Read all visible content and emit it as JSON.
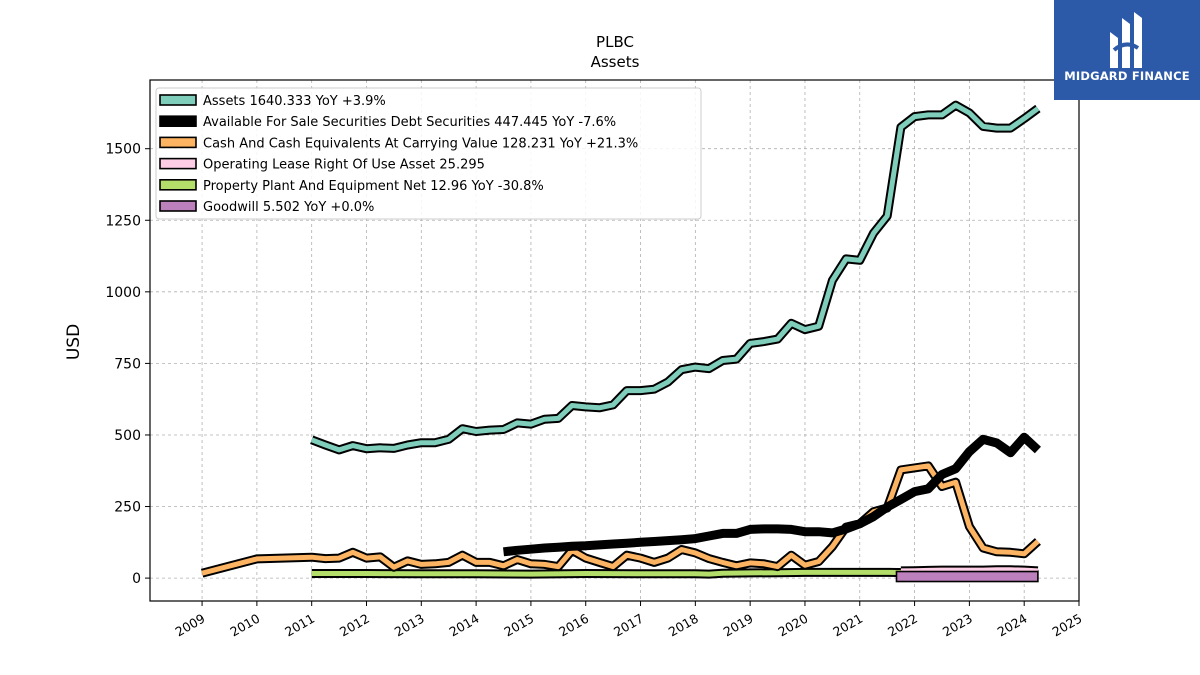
{
  "brand": {
    "name": "MIDGARD FINANCE",
    "logo_icon": "midgard-monogram-icon",
    "color": "#2d5aa8"
  },
  "chart_data": {
    "type": "line",
    "title": "PLBC",
    "subtitle": "Assets",
    "ylabel": "USD",
    "ylim": [
      -80,
      1740
    ],
    "xlim": [
      2008.05,
      2025.0
    ],
    "yticks": [
      0,
      250,
      500,
      750,
      1000,
      1250,
      1500
    ],
    "xticks": [
      2009,
      2010,
      2011,
      2012,
      2013,
      2014,
      2015,
      2016,
      2017,
      2018,
      2019,
      2020,
      2021,
      2022,
      2023,
      2024,
      2025
    ],
    "grid": true,
    "legend_position": "upper-left",
    "series": [
      {
        "name": "Assets",
        "legend": "Assets  1640.333 YoY +3.9%",
        "color": "#7fcdbb",
        "style": "outlined",
        "points": [
          [
            2011.0,
            483
          ],
          [
            2011.25,
            465
          ],
          [
            2011.5,
            448
          ],
          [
            2011.75,
            463
          ],
          [
            2012.0,
            452
          ],
          [
            2012.25,
            455
          ],
          [
            2012.5,
            453
          ],
          [
            2012.75,
            465
          ],
          [
            2013.0,
            473
          ],
          [
            2013.25,
            473
          ],
          [
            2013.5,
            485
          ],
          [
            2013.75,
            522
          ],
          [
            2014.0,
            512
          ],
          [
            2014.25,
            517
          ],
          [
            2014.5,
            519
          ],
          [
            2014.75,
            542
          ],
          [
            2015.0,
            538
          ],
          [
            2015.25,
            555
          ],
          [
            2015.5,
            558
          ],
          [
            2015.75,
            603
          ],
          [
            2016.0,
            598
          ],
          [
            2016.25,
            595
          ],
          [
            2016.5,
            605
          ],
          [
            2016.75,
            655
          ],
          [
            2017.0,
            655
          ],
          [
            2017.25,
            660
          ],
          [
            2017.5,
            685
          ],
          [
            2017.75,
            728
          ],
          [
            2018.0,
            737
          ],
          [
            2018.25,
            732
          ],
          [
            2018.5,
            760
          ],
          [
            2018.75,
            765
          ],
          [
            2019.0,
            820
          ],
          [
            2019.25,
            826
          ],
          [
            2019.5,
            835
          ],
          [
            2019.75,
            890
          ],
          [
            2020.0,
            868
          ],
          [
            2020.25,
            880
          ],
          [
            2020.5,
            1040
          ],
          [
            2020.75,
            1115
          ],
          [
            2021.0,
            1110
          ],
          [
            2021.25,
            1205
          ],
          [
            2021.5,
            1265
          ],
          [
            2021.75,
            1575
          ],
          [
            2022.0,
            1612
          ],
          [
            2022.25,
            1618
          ],
          [
            2022.5,
            1618
          ],
          [
            2022.75,
            1652
          ],
          [
            2023.0,
            1625
          ],
          [
            2023.25,
            1578
          ],
          [
            2023.5,
            1572
          ],
          [
            2023.75,
            1572
          ],
          [
            2024.0,
            1605
          ],
          [
            2024.25,
            1640.333
          ]
        ]
      },
      {
        "name": "Available For Sale Securities Debt Securities",
        "legend": "Available For Sale Securities Debt Securities  447.445 YoY -7.6%",
        "color": "#000000",
        "style": "thick",
        "points": [
          [
            2014.5,
            92
          ],
          [
            2014.75,
            97
          ],
          [
            2015.0,
            101
          ],
          [
            2015.25,
            105
          ],
          [
            2015.5,
            108
          ],
          [
            2015.75,
            111
          ],
          [
            2016.0,
            113
          ],
          [
            2016.25,
            116
          ],
          [
            2016.5,
            119
          ],
          [
            2016.75,
            122
          ],
          [
            2017.0,
            125
          ],
          [
            2017.25,
            128
          ],
          [
            2017.5,
            131
          ],
          [
            2017.75,
            134
          ],
          [
            2018.0,
            138
          ],
          [
            2018.25,
            147
          ],
          [
            2018.5,
            156
          ],
          [
            2018.75,
            156
          ],
          [
            2019.0,
            170
          ],
          [
            2019.25,
            172
          ],
          [
            2019.5,
            172
          ],
          [
            2019.75,
            170
          ],
          [
            2020.0,
            162
          ],
          [
            2020.25,
            162
          ],
          [
            2020.5,
            158
          ],
          [
            2020.75,
            172
          ],
          [
            2021.0,
            190
          ],
          [
            2021.25,
            215
          ],
          [
            2021.5,
            248
          ],
          [
            2021.75,
            275
          ],
          [
            2022.0,
            302
          ],
          [
            2022.25,
            312
          ],
          [
            2022.5,
            362
          ],
          [
            2022.75,
            382
          ],
          [
            2023.0,
            442
          ],
          [
            2023.25,
            485
          ],
          [
            2023.5,
            472
          ],
          [
            2023.75,
            438
          ],
          [
            2024.0,
            492
          ],
          [
            2024.25,
            447.445
          ]
        ]
      },
      {
        "name": "Cash And Cash Equivalents At Carrying Value",
        "legend": "Cash And Cash Equivalents At Carrying Value  128.231 YoY +21.3%",
        "color": "#fdb462",
        "style": "outlined",
        "points": [
          [
            2009.0,
            17
          ],
          [
            2010.0,
            67
          ],
          [
            2011.0,
            73
          ],
          [
            2011.25,
            68
          ],
          [
            2011.5,
            70
          ],
          [
            2011.75,
            90
          ],
          [
            2012.0,
            70
          ],
          [
            2012.25,
            74
          ],
          [
            2012.5,
            38
          ],
          [
            2012.75,
            60
          ],
          [
            2013.0,
            48
          ],
          [
            2013.25,
            50
          ],
          [
            2013.5,
            55
          ],
          [
            2013.75,
            80
          ],
          [
            2014.0,
            55
          ],
          [
            2014.25,
            55
          ],
          [
            2014.5,
            43
          ],
          [
            2014.75,
            65
          ],
          [
            2015.0,
            50
          ],
          [
            2015.25,
            48
          ],
          [
            2015.5,
            40
          ],
          [
            2015.75,
            97
          ],
          [
            2016.0,
            70
          ],
          [
            2016.25,
            55
          ],
          [
            2016.5,
            40
          ],
          [
            2016.75,
            80
          ],
          [
            2017.0,
            70
          ],
          [
            2017.25,
            55
          ],
          [
            2017.5,
            70
          ],
          [
            2017.75,
            100
          ],
          [
            2018.0,
            88
          ],
          [
            2018.25,
            68
          ],
          [
            2018.5,
            55
          ],
          [
            2018.75,
            43
          ],
          [
            2019.0,
            53
          ],
          [
            2019.25,
            50
          ],
          [
            2019.5,
            40
          ],
          [
            2019.75,
            80
          ],
          [
            2020.0,
            45
          ],
          [
            2020.25,
            58
          ],
          [
            2020.5,
            110
          ],
          [
            2020.75,
            178
          ],
          [
            2021.0,
            190
          ],
          [
            2021.25,
            232
          ],
          [
            2021.5,
            245
          ],
          [
            2021.75,
            378
          ],
          [
            2022.0,
            385
          ],
          [
            2022.25,
            392
          ],
          [
            2022.5,
            320
          ],
          [
            2022.75,
            335
          ],
          [
            2023.0,
            180
          ],
          [
            2023.25,
            105
          ],
          [
            2023.5,
            92
          ],
          [
            2023.75,
            90
          ],
          [
            2024.0,
            85
          ],
          [
            2024.25,
            128.231
          ]
        ]
      },
      {
        "name": "Operating Lease Right Of Use Asset",
        "legend": "Operating Lease Right Of Use Asset  25.295",
        "color": "#fccde5",
        "style": "outlined",
        "points": [
          [
            2021.75,
            25
          ],
          [
            2022.0,
            26
          ],
          [
            2022.25,
            27
          ],
          [
            2022.5,
            28
          ],
          [
            2022.75,
            28
          ],
          [
            2023.0,
            28
          ],
          [
            2023.25,
            28
          ],
          [
            2023.5,
            29
          ],
          [
            2023.75,
            29
          ],
          [
            2024.0,
            28
          ],
          [
            2024.25,
            25.295
          ]
        ]
      },
      {
        "name": "Property Plant And Equipment Net",
        "legend": "Property Plant And Equipment Net  12.96 YoY -30.8%",
        "color": "#b3de69",
        "style": "outlined",
        "points": [
          [
            2011.0,
            16
          ],
          [
            2012.0,
            16
          ],
          [
            2013.0,
            15
          ],
          [
            2014.0,
            15
          ],
          [
            2015.0,
            14
          ],
          [
            2016.0,
            16
          ],
          [
            2017.0,
            15
          ],
          [
            2018.0,
            15
          ],
          [
            2018.25,
            14
          ],
          [
            2018.5,
            17
          ],
          [
            2019.0,
            18
          ],
          [
            2019.5,
            19
          ],
          [
            2020.0,
            20
          ],
          [
            2020.5,
            20
          ],
          [
            2021.0,
            20
          ],
          [
            2021.5,
            20
          ],
          [
            2022.0,
            19
          ],
          [
            2023.0,
            18
          ],
          [
            2023.5,
            19
          ],
          [
            2024.0,
            18.7
          ],
          [
            2024.25,
            12.96
          ]
        ]
      },
      {
        "name": "Goodwill",
        "legend": "Goodwill  5.502 YoY +0.0%",
        "color": "#bc80bd",
        "style": "band",
        "points": [
          [
            2021.67,
            5.502
          ],
          [
            2024.25,
            5.502
          ]
        ]
      }
    ]
  }
}
